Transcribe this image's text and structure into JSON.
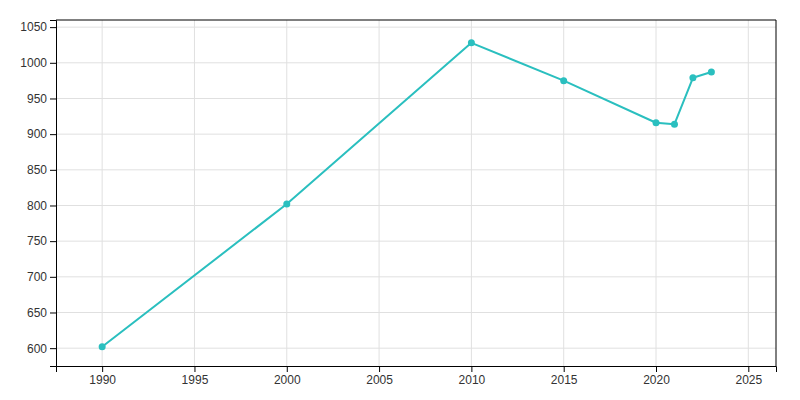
{
  "chart_data": {
    "type": "line",
    "x": [
      1990,
      2000,
      2010,
      2015,
      2020,
      2021,
      2022,
      2023
    ],
    "values": [
      602,
      802,
      1028,
      975,
      916,
      914,
      979,
      987
    ],
    "color": "#2abfbf",
    "marker": "circle",
    "xlim": [
      1987.5,
      2026.5
    ],
    "ylim": [
      575,
      1060
    ],
    "xticks": [
      1990,
      1995,
      2000,
      2005,
      2010,
      2015,
      2020,
      2025
    ],
    "yticks": [
      600,
      650,
      700,
      750,
      800,
      850,
      900,
      950,
      1000,
      1050
    ],
    "grid": true
  }
}
